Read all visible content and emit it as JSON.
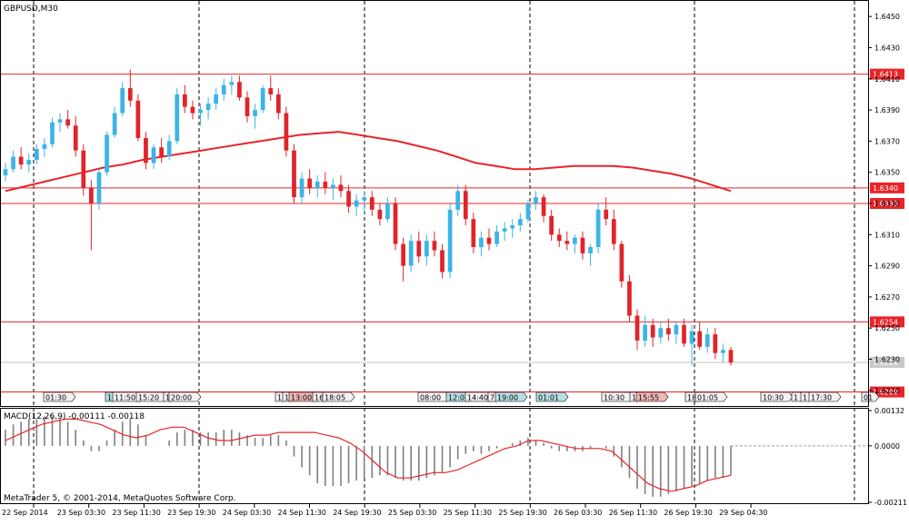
{
  "title": "GBPUSD,M30",
  "copyright": "MetaTrader 5, © 2001-2014, MetaQuotes Software Corp.",
  "macd_label": "MACD(12,26,9) -0.00111 -0.00118",
  "colors": {
    "bull": "#3cb4e6",
    "bear": "#e0242a",
    "level": "#e8242a",
    "ma": "#e8242a",
    "signal": "#e8242a",
    "hist": "#808080",
    "grid": "#000000"
  },
  "price_axis": {
    "ticks": [
      "1.6450",
      "1.6430",
      "1.6410",
      "1.6390",
      "1.6370",
      "1.6350",
      "1.6330",
      "1.6310",
      "1.6290",
      "1.6270",
      "1.6250",
      "1.6230",
      "1.6210"
    ],
    "min": 1.62,
    "max": 1.646
  },
  "macd_axis": {
    "ticks": [
      "0.00132",
      "0.0000",
      "-0.00211"
    ]
  },
  "levels": [
    {
      "label": "1.6413",
      "value": 1.6413
    },
    {
      "label": "1.6340",
      "value": 1.634
    },
    {
      "label": "1.6330",
      "value": 1.633
    },
    {
      "label": "1.6254",
      "value": 1.6254
    },
    {
      "label": "1.6209",
      "value": 1.6209
    }
  ],
  "current_price": {
    "label": "1.6228",
    "value": 1.6228
  },
  "time_axis": {
    "labels": [
      "22 Sep 2014",
      "23 Sep 03:30",
      "23 Sep 11:30",
      "23 Sep 19:30",
      "24 Sep 03:30",
      "24 Sep 11:30",
      "24 Sep 19:30",
      "25 Sep 03:30",
      "25 Sep 11:30",
      "25 Sep 19:30",
      "26 Sep 03:30",
      "26 Sep 11:30",
      "26 Sep 19:30",
      "29 Sep 04:30"
    ]
  },
  "event_flags": [
    {
      "label": "01:30",
      "style": "plain"
    },
    {
      "label": "1",
      "style": "teal"
    },
    {
      "label": "11:50",
      "style": "plain"
    },
    {
      "label": "15:20",
      "style": "plain"
    },
    {
      "label": "1",
      "style": "plain"
    },
    {
      "label": "20:00",
      "style": "plain"
    },
    {
      "label": "1",
      "style": "plain"
    },
    {
      "label": "1",
      "style": "plain"
    },
    {
      "label": "13:00",
      "style": "red"
    },
    {
      "label": "16",
      "style": "plain"
    },
    {
      "label": "18:05",
      "style": "plain"
    },
    {
      "label": "08:00",
      "style": "plain"
    },
    {
      "label": "12:0",
      "style": "teal"
    },
    {
      "label": "14:40",
      "style": "plain"
    },
    {
      "label": "7",
      "style": "plain"
    },
    {
      "label": "19:00",
      "style": "teal"
    },
    {
      "label": "01:01",
      "style": "teal"
    },
    {
      "label": "10:30",
      "style": "plain"
    },
    {
      "label": "1",
      "style": "plain"
    },
    {
      "label": "15:55",
      "style": "red"
    },
    {
      "label": "18",
      "style": "plain"
    },
    {
      "label": "01:05",
      "style": "plain"
    },
    {
      "label": "10:30",
      "style": "plain"
    },
    {
      "label": "1",
      "style": "plain"
    },
    {
      "label": "1",
      "style": "plain"
    },
    {
      "label": "17:30",
      "style": "plain"
    },
    {
      "label": "01",
      "style": "plain"
    }
  ],
  "chart_data": {
    "type": "candlestick",
    "title": "GBPUSD,M30",
    "ylim": [
      1.62,
      1.646
    ],
    "candles": [
      [
        1.6348,
        1.6356,
        1.6344,
        1.6352
      ],
      [
        1.6352,
        1.6364,
        1.635,
        1.636
      ],
      [
        1.636,
        1.6366,
        1.6352,
        1.6355
      ],
      [
        1.6355,
        1.6362,
        1.635,
        1.6358
      ],
      [
        1.6358,
        1.6368,
        1.6355,
        1.6365
      ],
      [
        1.6365,
        1.6372,
        1.636,
        1.6368
      ],
      [
        1.6368,
        1.6385,
        1.6366,
        1.6382
      ],
      [
        1.6382,
        1.6388,
        1.6376,
        1.6384
      ],
      [
        1.6384,
        1.639,
        1.6378,
        1.638
      ],
      [
        1.638,
        1.6386,
        1.636,
        1.6364
      ],
      [
        1.6364,
        1.6368,
        1.6335,
        1.634
      ],
      [
        1.634,
        1.6345,
        1.63,
        1.633
      ],
      [
        1.633,
        1.6352,
        1.6326,
        1.635
      ],
      [
        1.635,
        1.6376,
        1.6348,
        1.6374
      ],
      [
        1.6374,
        1.6392,
        1.6372,
        1.6388
      ],
      [
        1.6388,
        1.6408,
        1.6386,
        1.6404
      ],
      [
        1.6404,
        1.6416,
        1.6392,
        1.6396
      ],
      [
        1.6396,
        1.64,
        1.637,
        1.6372
      ],
      [
        1.6372,
        1.6376,
        1.6352,
        1.6356
      ],
      [
        1.6356,
        1.6368,
        1.6352,
        1.6366
      ],
      [
        1.6366,
        1.6372,
        1.6356,
        1.636
      ],
      [
        1.636,
        1.6374,
        1.6358,
        1.637
      ],
      [
        1.637,
        1.6404,
        1.6368,
        1.64
      ],
      [
        1.64,
        1.6406,
        1.6388,
        1.6392
      ],
      [
        1.6392,
        1.6396,
        1.6384,
        1.6388
      ],
      [
        1.6388,
        1.6394,
        1.638,
        1.639
      ],
      [
        1.639,
        1.6398,
        1.6384,
        1.6394
      ],
      [
        1.6394,
        1.6404,
        1.639,
        1.64
      ],
      [
        1.64,
        1.641,
        1.6396,
        1.6406
      ],
      [
        1.6406,
        1.6412,
        1.64,
        1.6408
      ],
      [
        1.6408,
        1.6412,
        1.6396,
        1.6398
      ],
      [
        1.6398,
        1.6402,
        1.6382,
        1.6386
      ],
      [
        1.6386,
        1.6394,
        1.6378,
        1.639
      ],
      [
        1.639,
        1.6406,
        1.6388,
        1.6404
      ],
      [
        1.6404,
        1.6412,
        1.6396,
        1.64
      ],
      [
        1.64,
        1.6404,
        1.6384,
        1.6388
      ],
      [
        1.6388,
        1.6392,
        1.636,
        1.6364
      ],
      [
        1.6364,
        1.6368,
        1.633,
        1.6334
      ],
      [
        1.6334,
        1.635,
        1.633,
        1.6346
      ],
      [
        1.6346,
        1.6352,
        1.6336,
        1.634
      ],
      [
        1.634,
        1.6348,
        1.6334,
        1.6344
      ],
      [
        1.6344,
        1.635,
        1.6336,
        1.634
      ],
      [
        1.634,
        1.6346,
        1.6332,
        1.6342
      ],
      [
        1.6342,
        1.6348,
        1.6334,
        1.6338
      ],
      [
        1.6338,
        1.6342,
        1.6324,
        1.6328
      ],
      [
        1.6328,
        1.6336,
        1.6322,
        1.6332
      ],
      [
        1.6332,
        1.6338,
        1.6324,
        1.6334
      ],
      [
        1.6334,
        1.6338,
        1.6322,
        1.6326
      ],
      [
        1.6326,
        1.633,
        1.6316,
        1.632
      ],
      [
        1.632,
        1.6334,
        1.6318,
        1.633
      ],
      [
        1.633,
        1.6334,
        1.63,
        1.6304
      ],
      [
        1.6304,
        1.6308,
        1.628,
        1.629
      ],
      [
        1.629,
        1.631,
        1.6286,
        1.6306
      ],
      [
        1.6306,
        1.6312,
        1.6292,
        1.6296
      ],
      [
        1.6296,
        1.631,
        1.629,
        1.6306
      ],
      [
        1.6306,
        1.6312,
        1.6296,
        1.63
      ],
      [
        1.63,
        1.6304,
        1.6282,
        1.6286
      ],
      [
        1.6286,
        1.633,
        1.6282,
        1.6326
      ],
      [
        1.6326,
        1.6342,
        1.6322,
        1.6338
      ],
      [
        1.6338,
        1.6342,
        1.6316,
        1.632
      ],
      [
        1.632,
        1.6324,
        1.6298,
        1.6302
      ],
      [
        1.6302,
        1.6312,
        1.6296,
        1.6308
      ],
      [
        1.6308,
        1.6314,
        1.63,
        1.6304
      ],
      [
        1.6304,
        1.6316,
        1.6302,
        1.6312
      ],
      [
        1.6312,
        1.6318,
        1.6306,
        1.6314
      ],
      [
        1.6314,
        1.632,
        1.6308,
        1.6316
      ],
      [
        1.6316,
        1.6324,
        1.6312,
        1.632
      ],
      [
        1.632,
        1.6332,
        1.6318,
        1.633
      ],
      [
        1.633,
        1.6338,
        1.6326,
        1.6334
      ],
      [
        1.6334,
        1.6336,
        1.6318,
        1.6322
      ],
      [
        1.6322,
        1.6326,
        1.6306,
        1.631
      ],
      [
        1.631,
        1.6314,
        1.6302,
        1.6306
      ],
      [
        1.6306,
        1.6312,
        1.63,
        1.6304
      ],
      [
        1.6304,
        1.631,
        1.6298,
        1.6308
      ],
      [
        1.6308,
        1.6312,
        1.6294,
        1.6298
      ],
      [
        1.6298,
        1.6304,
        1.629,
        1.6302
      ],
      [
        1.6302,
        1.633,
        1.6298,
        1.6326
      ],
      [
        1.6326,
        1.6334,
        1.6316,
        1.632
      ],
      [
        1.632,
        1.6326,
        1.63,
        1.6304
      ],
      [
        1.6304,
        1.6306,
        1.6276,
        1.628
      ],
      [
        1.628,
        1.6284,
        1.6254,
        1.6258
      ],
      [
        1.6258,
        1.6262,
        1.6236,
        1.6242
      ],
      [
        1.6242,
        1.6258,
        1.6238,
        1.6252
      ],
      [
        1.6252,
        1.6256,
        1.6238,
        1.6244
      ],
      [
        1.6244,
        1.6254,
        1.624,
        1.625
      ],
      [
        1.625,
        1.6256,
        1.6242,
        1.6246
      ],
      [
        1.6246,
        1.6254,
        1.624,
        1.6252
      ],
      [
        1.6252,
        1.6256,
        1.6238,
        1.624
      ],
      [
        1.624,
        1.6252,
        1.6226,
        1.6248
      ],
      [
        1.6248,
        1.6254,
        1.6236,
        1.6238
      ],
      [
        1.6238,
        1.625,
        1.6234,
        1.6246
      ],
      [
        1.6246,
        1.625,
        1.623,
        1.6234
      ],
      [
        1.6234,
        1.624,
        1.6228,
        1.6236
      ],
      [
        1.6236,
        1.6238,
        1.6226,
        1.6228
      ]
    ],
    "ma": [
      1.6338,
      1.6341,
      1.6344,
      1.6347,
      1.635,
      1.6353,
      1.6355,
      1.6358,
      1.636,
      1.6362,
      1.6364,
      1.6366,
      1.6368,
      1.637,
      1.6372,
      1.6374,
      1.6375,
      1.6376,
      1.6374,
      1.6372,
      1.637,
      1.6367,
      1.6364,
      1.636,
      1.6356,
      1.6354,
      1.6352,
      1.6352,
      1.6353,
      1.6354,
      1.6354,
      1.6354,
      1.6353,
      1.6351,
      1.6349,
      1.6346,
      1.6342,
      1.6338
    ],
    "macd_hist": [
      0.0006,
      0.0008,
      0.0009,
      0.001,
      0.001,
      0.0011,
      0.0011,
      0.001,
      0.0009,
      0.0006,
      0.0002,
      -0.0002,
      -0.0002,
      0.0002,
      0.0006,
      0.0009,
      0.001,
      0.0008,
      0.0004,
      0.0,
      0.0,
      0.0002,
      0.0005,
      0.0006,
      0.0006,
      0.0005,
      0.0005,
      0.0005,
      0.0006,
      0.0006,
      0.0005,
      0.0004,
      0.0003,
      0.0003,
      0.0004,
      0.0004,
      0.0002,
      -0.0004,
      -0.0008,
      -0.0011,
      -0.0014,
      -0.0015,
      -0.0015,
      -0.0015,
      -0.0014,
      -0.0013,
      -0.0012,
      -0.0012,
      -0.0011,
      -0.0011,
      -0.0012,
      -0.0013,
      -0.0013,
      -0.0013,
      -0.0012,
      -0.0011,
      -0.001,
      -0.0008,
      -0.0005,
      -0.0003,
      -0.0002,
      -0.0003,
      -0.0002,
      -0.0001,
      0.0,
      0.0001,
      0.0002,
      0.0003,
      0.0002,
      0.0001,
      -0.0001,
      -0.0002,
      -0.0002,
      -0.0002,
      -0.0002,
      -0.0001,
      0.0,
      -0.0001,
      -0.0004,
      -0.0008,
      -0.0012,
      -0.0016,
      -0.0018,
      -0.0019,
      -0.0019,
      -0.0018,
      -0.0017,
      -0.0016,
      -0.0015,
      -0.0014,
      -0.0013,
      -0.0012,
      -0.0012,
      -0.0011
    ],
    "macd_signal": [
      0.0002,
      0.0004,
      0.0006,
      0.0008,
      0.0009,
      0.001,
      0.001,
      0.0009,
      0.0008,
      0.0006,
      0.0004,
      0.0003,
      0.0004,
      0.0006,
      0.0007,
      0.0007,
      0.0005,
      0.0003,
      0.0002,
      0.0002,
      0.0003,
      0.0004,
      0.0004,
      0.0005,
      0.0005,
      0.0005,
      0.0005,
      0.0004,
      0.0003,
      0.0001,
      -0.0002,
      -0.0006,
      -0.001,
      -0.0012,
      -0.0012,
      -0.0011,
      -0.001,
      -0.001,
      -0.0009,
      -0.0007,
      -0.0005,
      -0.0003,
      -0.0001,
      0.0,
      0.0002,
      0.0002,
      0.0001,
      0.0,
      -0.0001,
      -0.0001,
      -0.0001,
      -0.0002,
      -0.0006,
      -0.001,
      -0.0014,
      -0.0016,
      -0.0017,
      -0.0016,
      -0.0015,
      -0.0013,
      -0.0012,
      -0.0011
    ],
    "macd_ylim": [
      -0.00211,
      0.00132
    ]
  }
}
